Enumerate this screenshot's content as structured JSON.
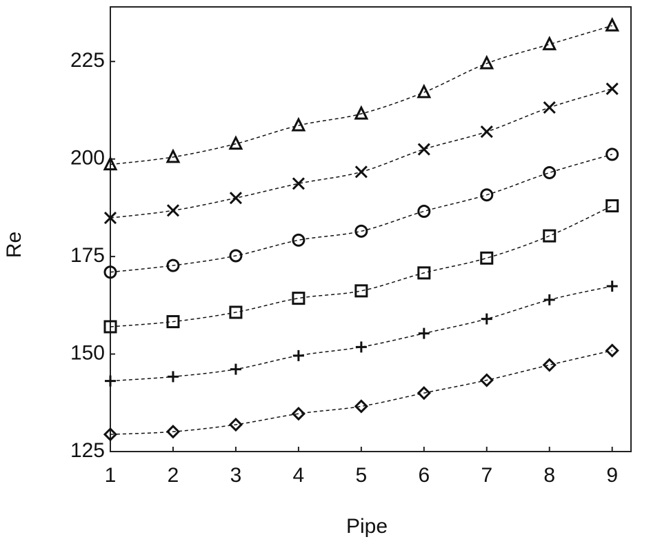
{
  "chart_data": {
    "type": "line",
    "x_label": "Pipe",
    "y_label": "Re",
    "x": [
      1,
      2,
      3,
      4,
      5,
      6,
      7,
      8,
      9
    ],
    "series": [
      {
        "marker": "triangle",
        "color": "#111111",
        "values": [
          198.6,
          200.5,
          203.9,
          208.6,
          211.6,
          217.1,
          224.5,
          229.4,
          234.2
        ]
      },
      {
        "marker": "x",
        "color": "#111111",
        "values": [
          184.9,
          186.8,
          190.0,
          193.7,
          196.7,
          202.5,
          207.0,
          213.2,
          218.0
        ]
      },
      {
        "marker": "circle",
        "color": "#111111",
        "values": [
          171.0,
          172.7,
          175.2,
          179.2,
          181.5,
          186.6,
          190.8,
          196.5,
          201.2
        ]
      },
      {
        "marker": "square",
        "color": "#111111",
        "values": [
          157.0,
          158.3,
          160.7,
          164.3,
          166.2,
          170.8,
          174.6,
          180.3,
          188.0
        ]
      },
      {
        "marker": "plus",
        "color": "#111111",
        "values": [
          143.1,
          144.2,
          146.1,
          149.6,
          151.8,
          155.3,
          159.0,
          163.9,
          167.4
        ]
      },
      {
        "marker": "diamond",
        "color": "#111111",
        "values": [
          129.4,
          130.1,
          131.9,
          134.7,
          136.6,
          140.0,
          143.3,
          147.2,
          150.9
        ]
      }
    ],
    "xlim": [
      1,
      9.3
    ],
    "ylim": [
      125,
      239
    ],
    "xticks": [
      1,
      2,
      3,
      4,
      5,
      6,
      7,
      8,
      9
    ],
    "yticks": [
      125,
      150,
      175,
      200,
      225
    ],
    "line_style": "dashed",
    "grid": false
  }
}
